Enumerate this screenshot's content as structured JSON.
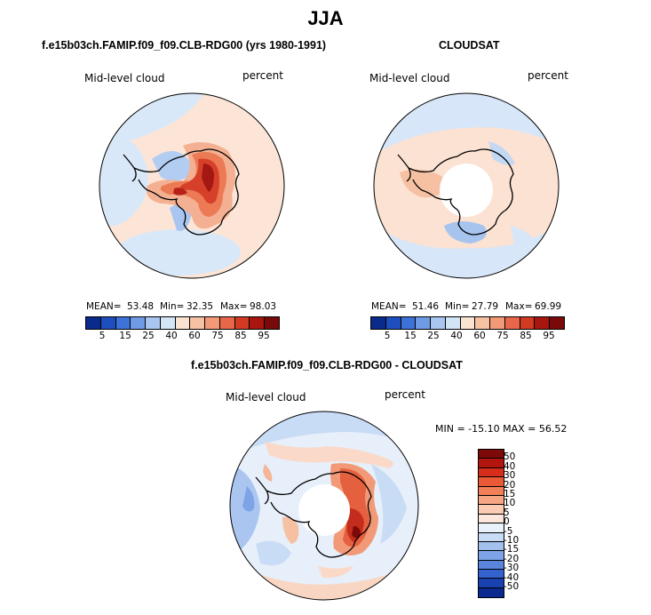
{
  "main_title": "JJA",
  "panels": [
    {
      "title": "f.e15b03ch.FAMIP.f09_f09.CLB-RDG00 (yrs 1980-1991)",
      "left_label": "Mid-level cloud",
      "right_label": "percent",
      "stats": {
        "mean_label": "MEAN=",
        "mean": "53.48",
        "min_label": "Min=",
        "min": "32.35",
        "max_label": "Max=",
        "max": "98.03"
      }
    },
    {
      "title": "CLOUDSAT",
      "left_label": "Mid-level cloud",
      "right_label": "percent",
      "stats": {
        "mean_label": "MEAN=",
        "mean": "51.46",
        "min_label": "Min=",
        "min": "27.79",
        "max_label": "Max=",
        "max": "69.99"
      }
    },
    {
      "title": "f.e15b03ch.FAMIP.f09_f09.CLB-RDG00 - CLOUDSAT",
      "left_label": "Mid-level cloud",
      "right_label": "percent",
      "range_text": "MIN = -15.10 MAX =  56.52"
    }
  ],
  "abs_colorbar": {
    "ticks": [
      "5",
      "15",
      "25",
      "40",
      "60",
      "75",
      "85",
      "95"
    ],
    "colors": [
      "#0a2a8c",
      "#1f4fbf",
      "#3d72d9",
      "#6f9be6",
      "#a8c6f0",
      "#d4e4f7",
      "#fbe3d2",
      "#f7c1a4",
      "#f29a78",
      "#e8674a",
      "#d23a22",
      "#a8160f",
      "#7a0a0a"
    ]
  },
  "diff_colorbar": {
    "ticks": [
      "50",
      "40",
      "30",
      "20",
      "15",
      "10",
      "5",
      "0",
      "-5",
      "-10",
      "-15",
      "-20",
      "-30",
      "-40",
      "-50"
    ],
    "colors": [
      "#7d0909",
      "#b3160f",
      "#d72e1c",
      "#ea5a36",
      "#f27f58",
      "#f7a583",
      "#fbcbb3",
      "#fde7dc",
      "#e9f1fb",
      "#c9dcf6",
      "#a2c1ef",
      "#7ea3e6",
      "#5a85dc",
      "#3463cf",
      "#1941b0",
      "#0b2a8f"
    ]
  }
}
